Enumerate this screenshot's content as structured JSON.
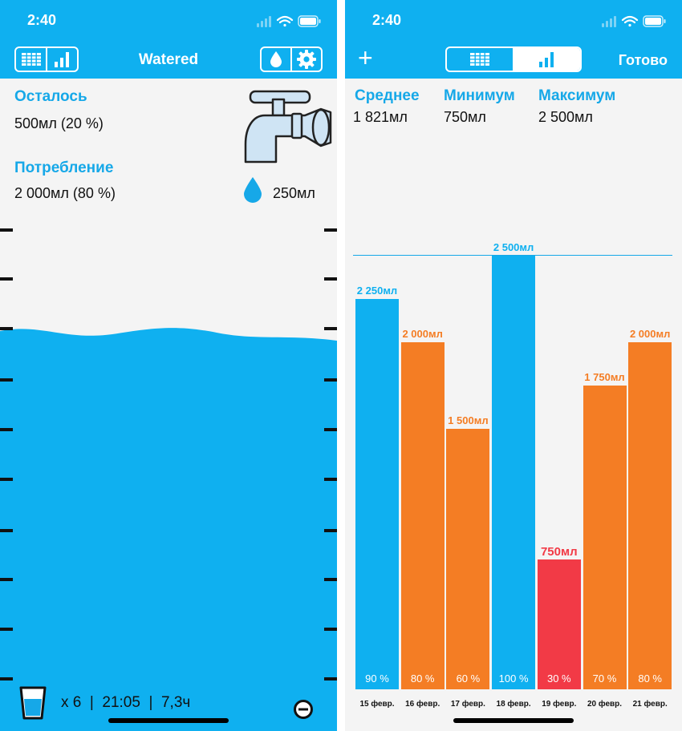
{
  "colors": {
    "blue": "#0fb0f0",
    "orange": "#f47d24",
    "red": "#f23a46",
    "label_blue": "#16a8e8"
  },
  "left": {
    "status_time": "2:40",
    "app_title": "Watered",
    "remaining_label": "Осталось",
    "remaining_value": "500мл (20 %)",
    "consumption_label": "Потребление",
    "consumption_value": "2 000мл (80 %)",
    "portion_value": "250мл",
    "fill_fraction": 0.8,
    "footer": "x 6  |  21:05  |  7,3ч",
    "icons": [
      "table-icon",
      "bar-chart-icon",
      "drop-icon",
      "gear-icon",
      "faucet-icon",
      "glass-icon",
      "minus-circle-icon"
    ]
  },
  "right": {
    "status_time": "2:40",
    "done_label": "Готово",
    "plus_label": "+",
    "stats": [
      {
        "label": "Среднее",
        "value": "1 821мл"
      },
      {
        "label": "Минимум",
        "value": "750мл"
      },
      {
        "label": "Максимум",
        "value": "2 500мл"
      }
    ]
  },
  "chart_data": {
    "type": "bar",
    "categories": [
      "15 февр.",
      "16 февр.",
      "17 февр.",
      "18 февр.",
      "19 февр.",
      "20 февр.",
      "21 февр."
    ],
    "values": [
      2250,
      2000,
      1500,
      2500,
      750,
      1750,
      2000
    ],
    "value_labels": [
      "2 250мл",
      "2 000мл",
      "1 500мл",
      "2 500мл",
      "750мл",
      "1 750мл",
      "2 000мл"
    ],
    "percent_labels": [
      "90 %",
      "80 %",
      "60 %",
      "100 %",
      "30 %",
      "70 %",
      "80 %"
    ],
    "bar_colors": [
      "#0fb0f0",
      "#f47d24",
      "#f47d24",
      "#0fb0f0",
      "#f23a46",
      "#f47d24",
      "#f47d24"
    ],
    "ylim": [
      0,
      2500
    ],
    "reference_line": 2500
  }
}
